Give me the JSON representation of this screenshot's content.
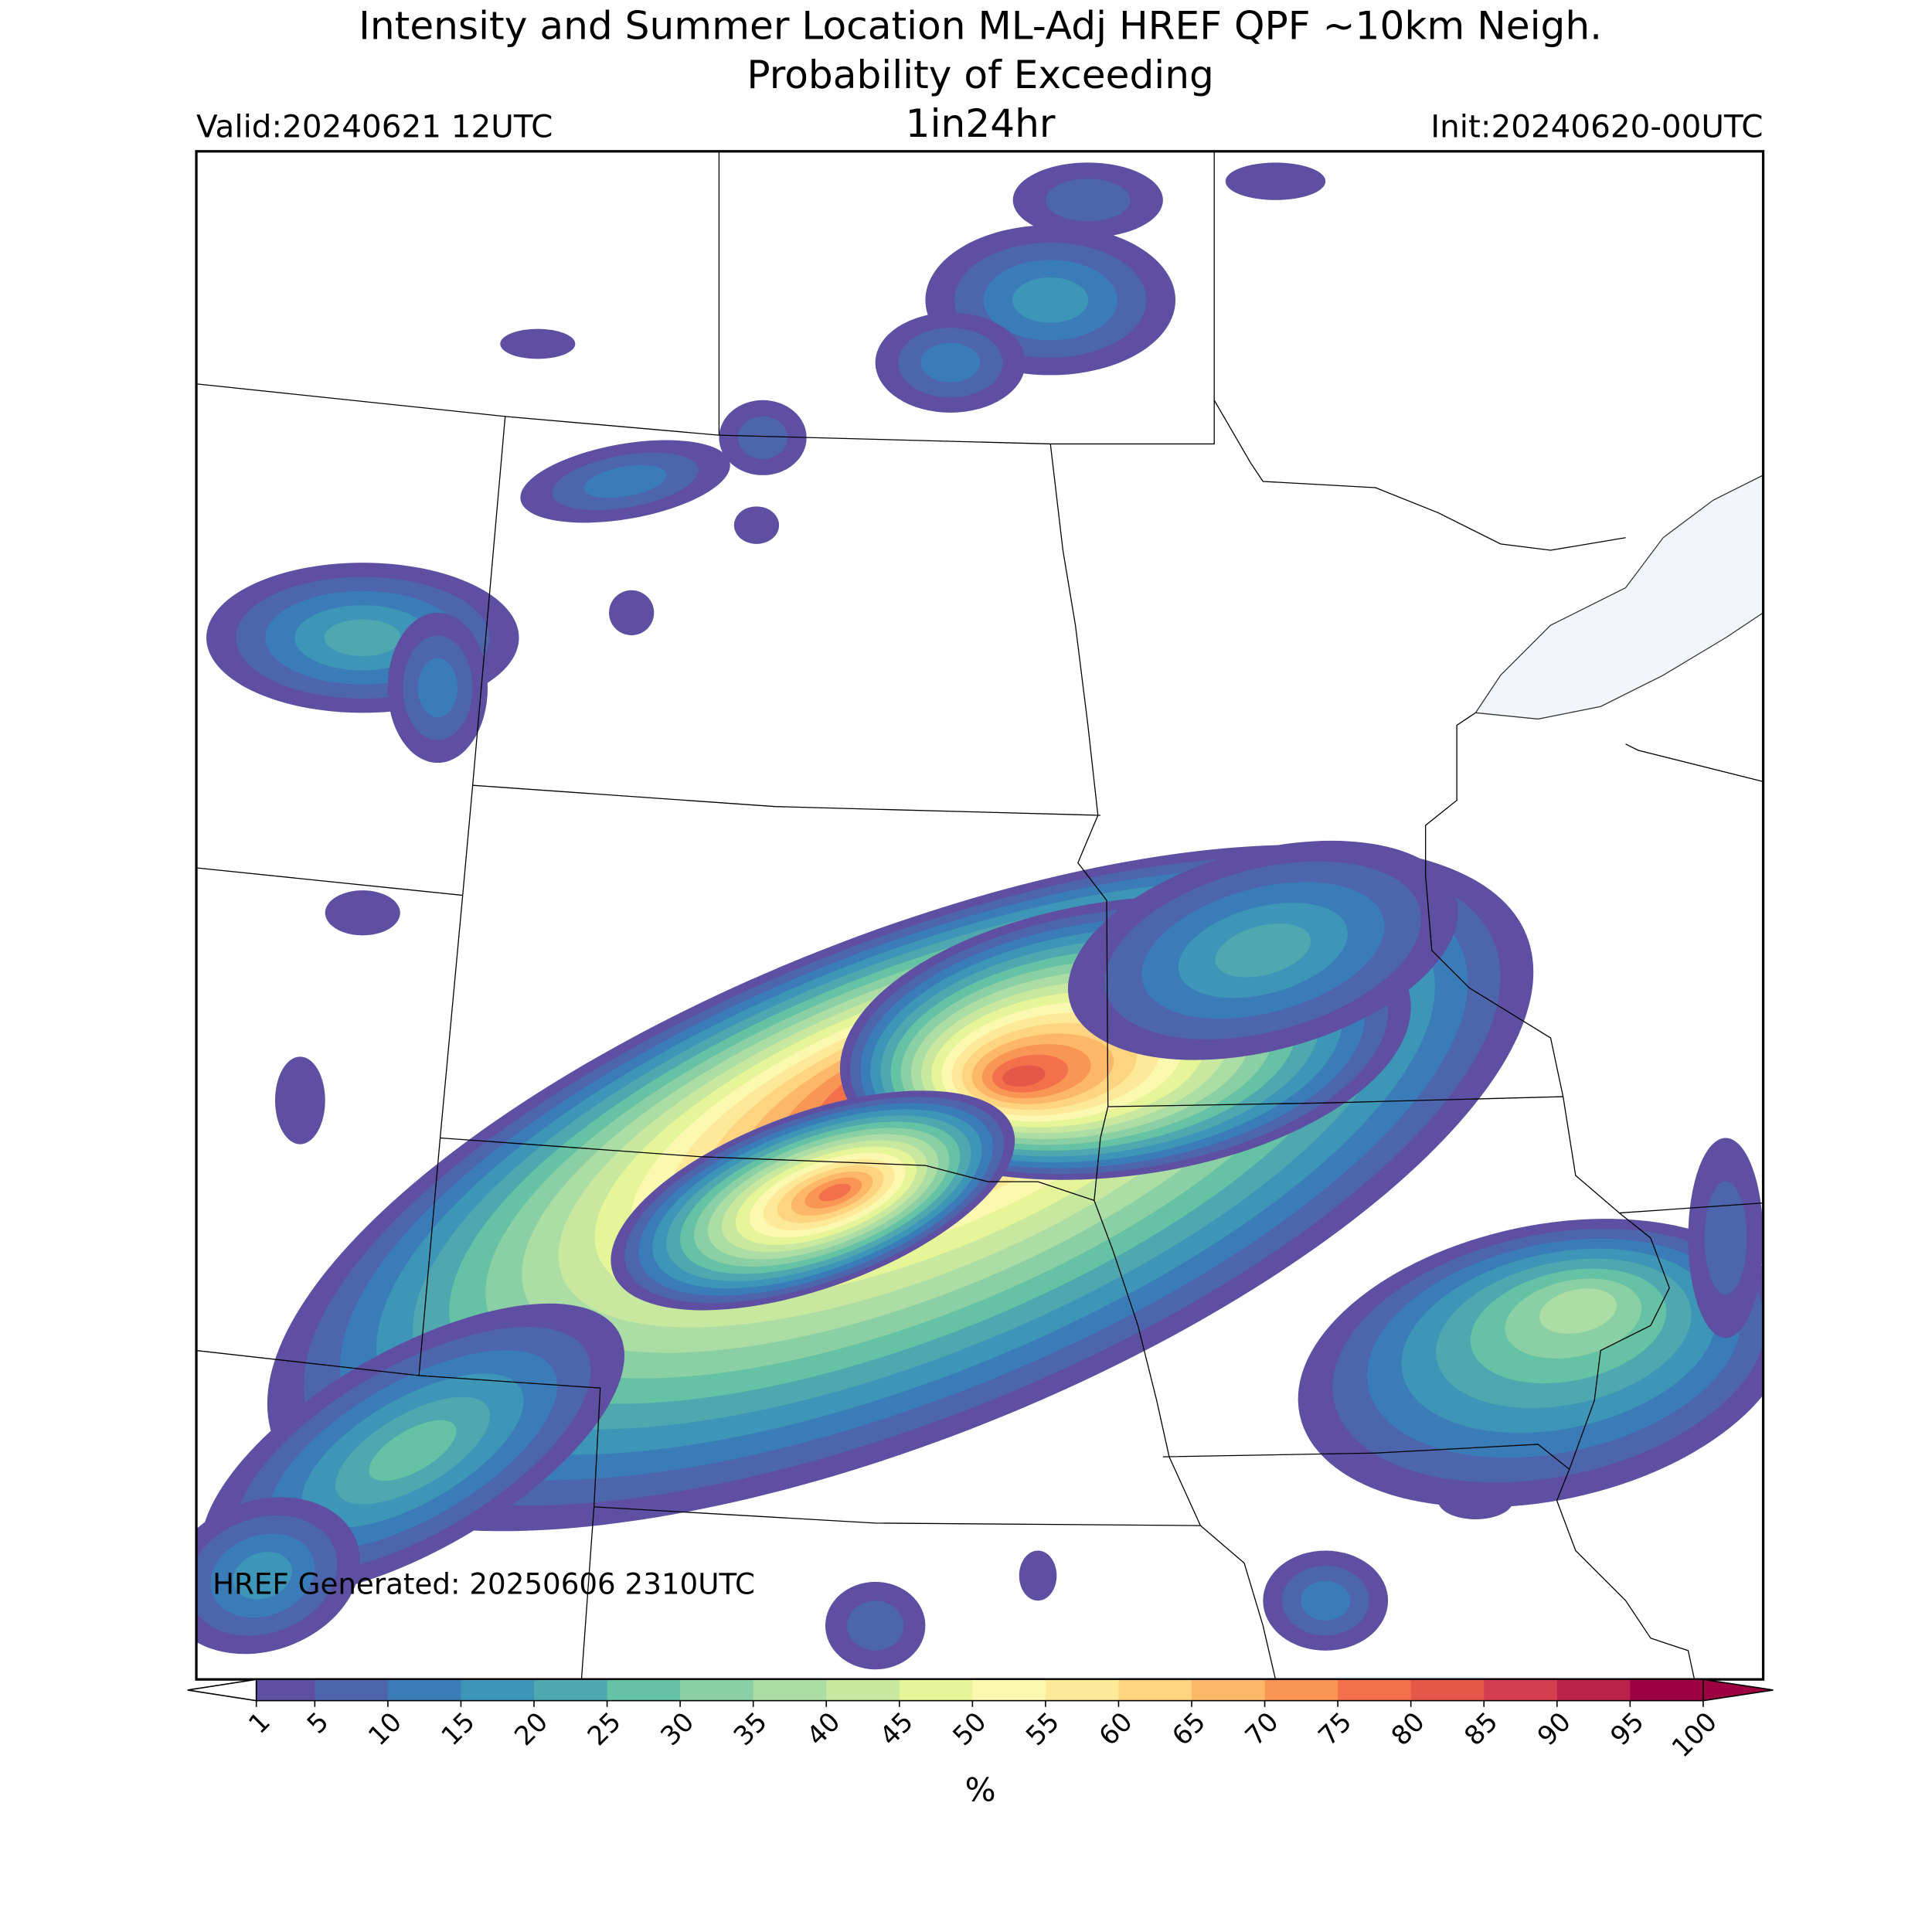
{
  "header": {
    "title_line1": "Intensity and Summer Location ML-Adj HREF QPF ~10km Neigh.",
    "title_line2": "Probability of Exceeding",
    "valid": "Valid:20240621 12UTC",
    "threshold": "1in24hr",
    "init": "Init:20240620-00UTC"
  },
  "footer": "HREF Generated: 20250606 2310UTC",
  "colorbar": {
    "label": "%",
    "levels": [
      1,
      5,
      10,
      15,
      20,
      25,
      30,
      35,
      40,
      45,
      50,
      55,
      60,
      65,
      70,
      75,
      80,
      85,
      90,
      95,
      100
    ],
    "colors": [
      "#5e4fa2",
      "#4d65ad",
      "#3a7cb8",
      "#3d95b8",
      "#4fa7b0",
      "#66c2a5",
      "#8ad0a4",
      "#abdda4",
      "#c7e89e",
      "#e6f598",
      "#fbf8b0",
      "#fee999",
      "#fed481",
      "#fdb768",
      "#f99555",
      "#f4704a",
      "#e55749",
      "#d53e4f",
      "#bb2249",
      "#9e0142"
    ],
    "under_color": "#ffffff",
    "over_color": "#9e0142"
  }
}
